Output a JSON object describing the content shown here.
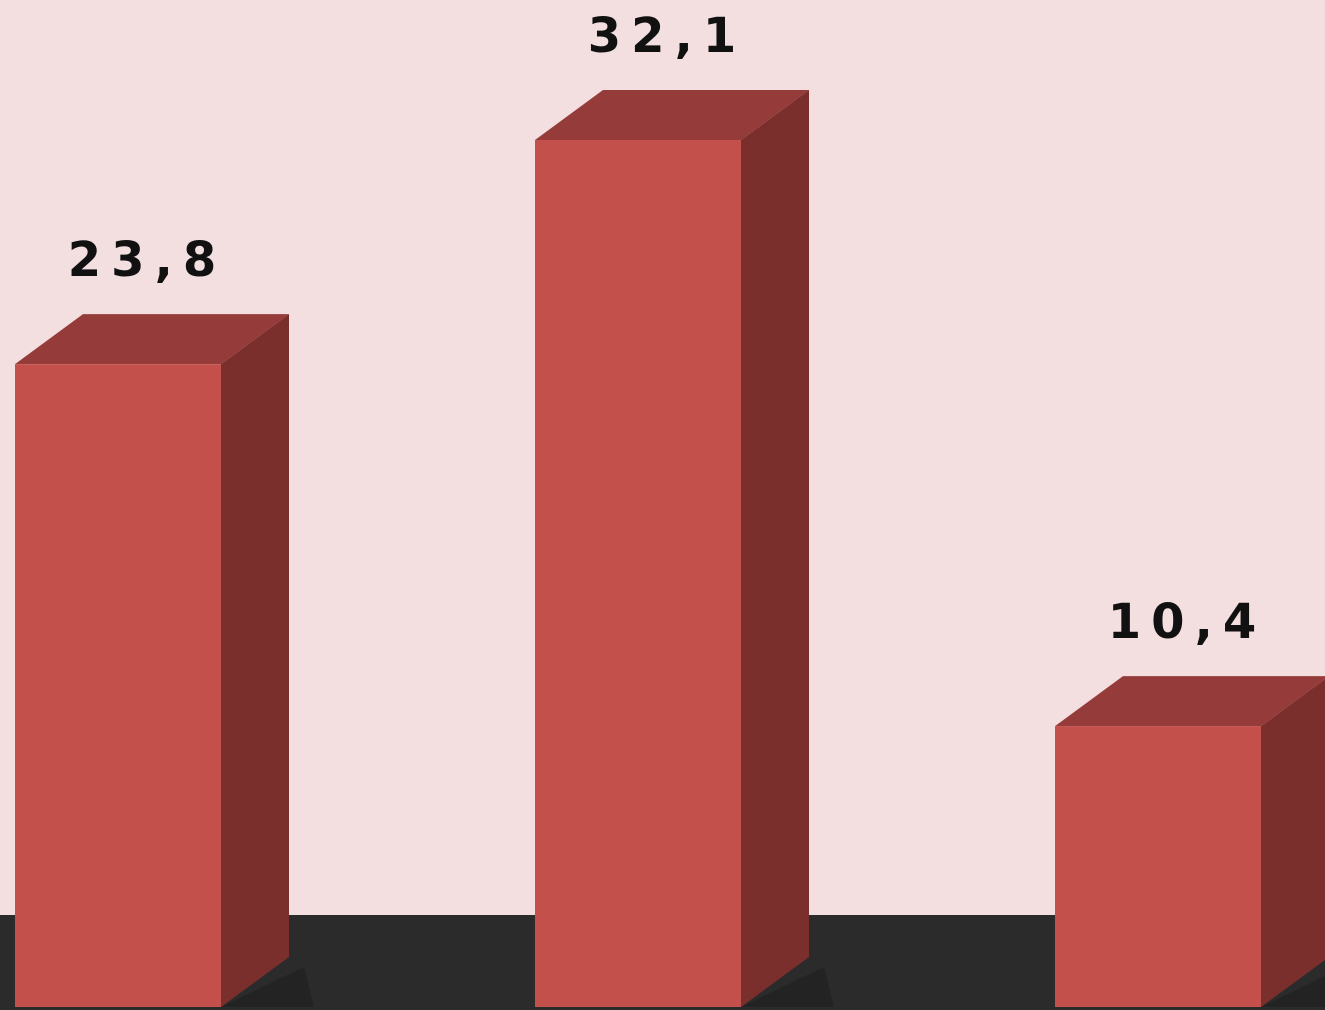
{
  "chart_data": {
    "type": "bar",
    "style": "3d",
    "categories": [
      "",
      "",
      ""
    ],
    "values": [
      23.8,
      32.1,
      10.4
    ],
    "data_labels": [
      "23,8",
      "32,1",
      "10,4"
    ],
    "title": "",
    "xlabel": "",
    "ylabel": "",
    "ylim": [
      0,
      32.1
    ],
    "grid": false,
    "legend": "none"
  },
  "colors": {
    "background": "#f3dfe0",
    "floor": "#2b2b2b",
    "bar_front": "#c4504c",
    "bar_top": "#953b3a",
    "bar_side": "#7a2f2d",
    "label": "#111111"
  }
}
